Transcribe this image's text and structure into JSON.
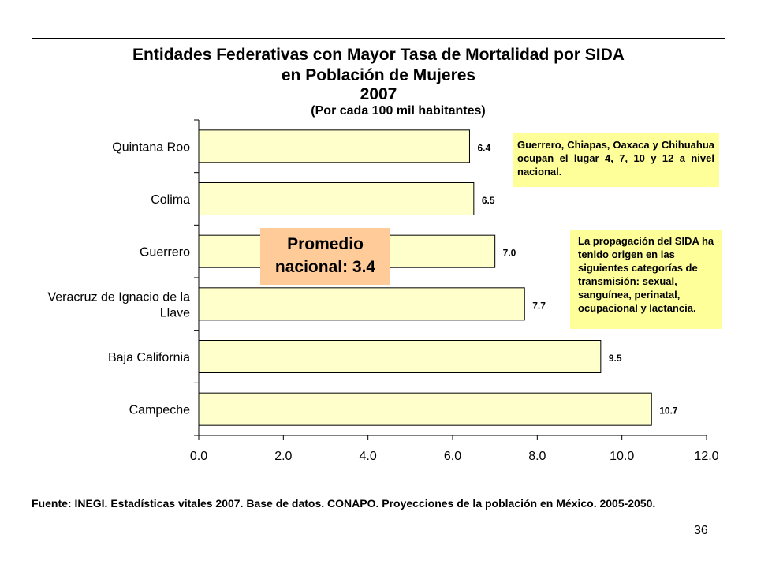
{
  "chart_data": {
    "type": "bar",
    "orientation": "horizontal",
    "title_lines": [
      "Entidades Federativas con Mayor Tasa de Mortalidad por SIDA",
      "en Población de Mujeres",
      "2007"
    ],
    "subtitle": "(Por cada 100 mil habitantes)",
    "categories": [
      "Quintana Roo",
      "Colima",
      "Guerrero",
      "Veracruz de Ignacio de la Llave",
      "Baja California",
      "Campeche"
    ],
    "category_label_lines": [
      [
        "Quintana Roo"
      ],
      [
        "Colima"
      ],
      [
        "Guerrero"
      ],
      [
        "Veracruz de Ignacio de la",
        "Llave"
      ],
      [
        "Baja California"
      ],
      [
        "Campeche"
      ]
    ],
    "values": [
      6.4,
      6.5,
      7.0,
      7.7,
      9.5,
      10.7
    ],
    "data_labels": [
      "6.4",
      "6.5",
      "7.0",
      "7.7",
      "9.5",
      "10.7"
    ],
    "xlim": [
      0,
      12
    ],
    "x_ticks": [
      "0.0",
      "2.0",
      "4.0",
      "6.0",
      "8.0",
      "10.0",
      "12.0"
    ],
    "grid": false,
    "bar_color": "#ffffcc"
  },
  "annotations": {
    "national_average": "Promedio nacional: 3.4",
    "states_note": "Guerrero, Chiapas, Oaxaca y Chihuahua ocupan el lugar 4, 7, 10 y 12 a nivel nacional.",
    "spread_note": "La propagación del SIDA ha tenido origen en las siguientes categorías de transmisión: sexual, sanguínea, perinatal, ocupacional y lactancia."
  },
  "source": "Fuente: INEGI. Estadísticas vitales 2007. Base de datos. CONAPO. Proyecciones de la población en México. 2005-2050.",
  "page_number": "36",
  "colors": {
    "note_background": "#ffff99",
    "average_box_background": "#ffcc99"
  }
}
